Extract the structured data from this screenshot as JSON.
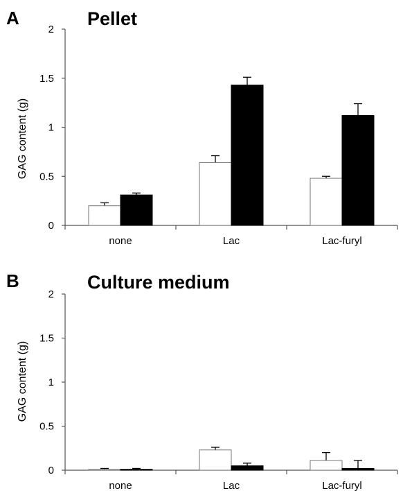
{
  "chart_data": [
    {
      "panel": "A",
      "type": "bar",
      "title": "Pellet",
      "ylabel": "GAG content (g)",
      "xlabel": "",
      "categories": [
        "none",
        "Lac",
        "Lac-furyl"
      ],
      "ylim": [
        0,
        2
      ],
      "yticks": [
        "0",
        "0.5",
        "1",
        "1.5",
        "2"
      ],
      "grid": false,
      "legend": "none",
      "series": [
        {
          "fill": "#ffffff",
          "values": [
            0.2,
            0.64,
            0.48
          ],
          "errors": [
            0.03,
            0.07,
            0.02
          ]
        },
        {
          "fill": "#000000",
          "values": [
            0.31,
            1.43,
            1.12
          ],
          "errors": [
            0.02,
            0.08,
            0.12
          ]
        }
      ]
    },
    {
      "panel": "B",
      "type": "bar",
      "title": "Culture medium",
      "ylabel": "GAG content (g)",
      "xlabel": "",
      "categories": [
        "none",
        "Lac",
        "Lac-furyl"
      ],
      "ylim": [
        0,
        2
      ],
      "yticks": [
        "0",
        "0.5",
        "1",
        "1.5",
        "2"
      ],
      "grid": false,
      "legend": "none",
      "series": [
        {
          "fill": "#ffffff",
          "values": [
            0.01,
            0.23,
            0.11
          ],
          "errors": [
            0.01,
            0.03,
            0.09
          ]
        },
        {
          "fill": "#000000",
          "values": [
            0.01,
            0.05,
            0.02
          ],
          "errors": [
            0.01,
            0.03,
            0.09
          ]
        }
      ]
    }
  ]
}
